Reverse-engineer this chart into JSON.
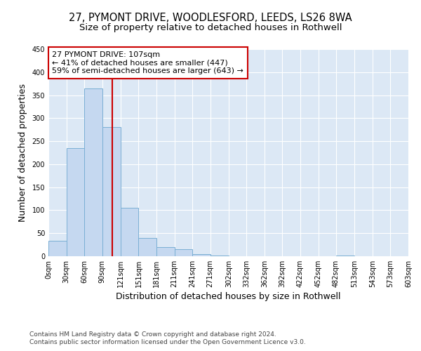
{
  "title_line1": "27, PYMONT DRIVE, WOODLESFORD, LEEDS, LS26 8WA",
  "title_line2": "Size of property relative to detached houses in Rothwell",
  "xlabel": "Distribution of detached houses by size in Rothwell",
  "ylabel": "Number of detached properties",
  "bin_edges": [
    0,
    30,
    60,
    90,
    121,
    151,
    181,
    211,
    241,
    271,
    302,
    332,
    362,
    392,
    422,
    452,
    482,
    513,
    543,
    573,
    603
  ],
  "bar_heights": [
    33,
    235,
    365,
    280,
    105,
    40,
    20,
    15,
    5,
    1,
    0,
    0,
    0,
    0,
    0,
    0,
    1,
    0,
    0,
    0
  ],
  "bar_color": "#c5d8f0",
  "bar_edge_color": "#7aafd4",
  "background_color": "#dce8f5",
  "grid_color": "#ffffff",
  "vline_x": 107,
  "vline_color": "#cc0000",
  "annotation_text": "27 PYMONT DRIVE: 107sqm\n← 41% of detached houses are smaller (447)\n59% of semi-detached houses are larger (643) →",
  "annotation_box_color": "#ffffff",
  "annotation_box_edge": "#cc0000",
  "ylim": [
    0,
    450
  ],
  "yticks": [
    0,
    50,
    100,
    150,
    200,
    250,
    300,
    350,
    400,
    450
  ],
  "tick_labels": [
    "0sqm",
    "30sqm",
    "60sqm",
    "90sqm",
    "121sqm",
    "151sqm",
    "181sqm",
    "211sqm",
    "241sqm",
    "271sqm",
    "302sqm",
    "332sqm",
    "362sqm",
    "392sqm",
    "422sqm",
    "452sqm",
    "482sqm",
    "513sqm",
    "543sqm",
    "573sqm",
    "603sqm"
  ],
  "footer_line1": "Contains HM Land Registry data © Crown copyright and database right 2024.",
  "footer_line2": "Contains public sector information licensed under the Open Government Licence v3.0.",
  "title_fontsize": 10.5,
  "subtitle_fontsize": 9.5,
  "axis_label_fontsize": 9,
  "tick_fontsize": 7,
  "footer_fontsize": 6.5,
  "annotation_fontsize": 8
}
